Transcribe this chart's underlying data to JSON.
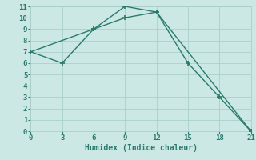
{
  "line1_x": [
    0,
    3,
    6,
    9,
    12,
    15,
    18,
    21
  ],
  "line1_y": [
    7,
    6,
    9,
    10,
    10.5,
    6,
    3,
    0
  ],
  "line2_x": [
    0,
    6,
    9,
    12,
    21
  ],
  "line2_y": [
    7,
    9,
    11,
    10.5,
    0
  ],
  "line_color": "#2a7a6e",
  "bg_color": "#cce8e4",
  "grid_color": "#aacfcb",
  "xlabel": "Humidex (Indice chaleur)",
  "xlim": [
    0,
    21
  ],
  "ylim": [
    0,
    11
  ],
  "xticks": [
    0,
    3,
    6,
    9,
    12,
    15,
    18,
    21
  ],
  "yticks": [
    0,
    1,
    2,
    3,
    4,
    5,
    6,
    7,
    8,
    9,
    10,
    11
  ],
  "font_family": "monospace"
}
